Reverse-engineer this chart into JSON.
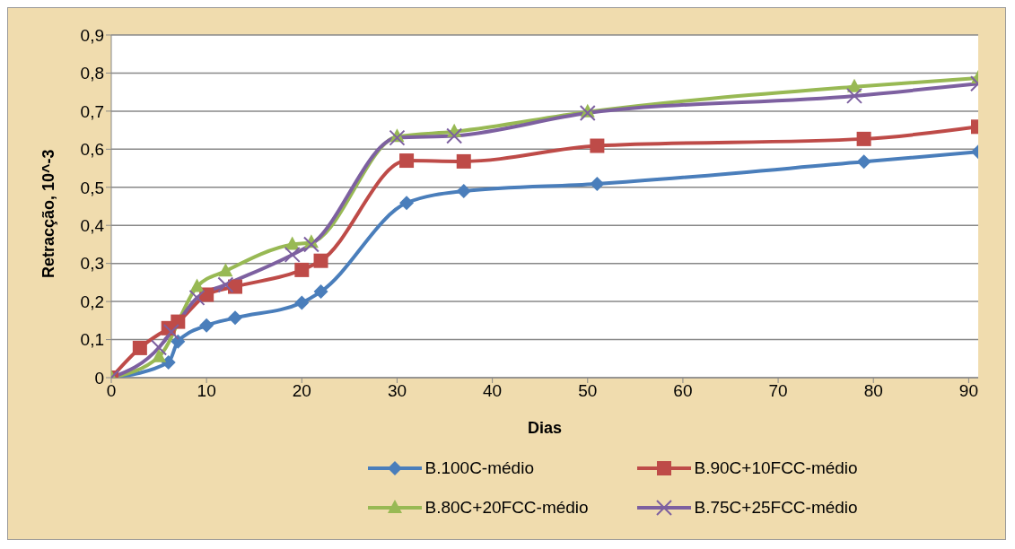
{
  "chart_data": {
    "type": "line",
    "xlabel": "Dias",
    "ylabel": "Retracção, 10^-3",
    "xlim": [
      0,
      91
    ],
    "xticks": [
      0,
      10,
      20,
      30,
      40,
      50,
      60,
      70,
      80,
      90
    ],
    "ylim": [
      0,
      0.9
    ],
    "yticks": [
      0,
      {
        "value": 0.1,
        "label": "0,1"
      },
      {
        "value": 0.2,
        "label": "0,2"
      },
      {
        "value": 0.3,
        "label": "0,3"
      },
      {
        "value": 0.4,
        "label": "0,4"
      },
      {
        "value": 0.5,
        "label": "0,5"
      },
      {
        "value": 0.6,
        "label": "0,6"
      },
      {
        "value": 0.7,
        "label": "0,7"
      },
      {
        "value": 0.8,
        "label": "0,8"
      },
      {
        "value": 0.9,
        "label": "0,9"
      }
    ],
    "grid": "y",
    "legend": "bottom",
    "series": [
      {
        "name": "B.100C-médio",
        "color": "#4a7ebb",
        "marker": "diamond",
        "x": [
          0,
          6,
          7,
          10,
          13,
          20,
          22,
          31,
          37,
          51,
          79,
          91
        ],
        "values": [
          0,
          0.04,
          0.095,
          0.137,
          0.157,
          0.197,
          0.226,
          0.459,
          0.49,
          0.509,
          0.567,
          0.593
        ]
      },
      {
        "name": "B.90C+10FCC-médio",
        "color": "#be4b48",
        "marker": "square",
        "x": [
          0,
          3,
          6,
          7,
          10,
          13,
          20,
          22,
          31,
          37,
          51,
          79,
          91
        ],
        "values": [
          0,
          0.078,
          0.13,
          0.147,
          0.218,
          0.239,
          0.283,
          0.307,
          0.57,
          0.568,
          0.609,
          0.627,
          0.659
        ]
      },
      {
        "name": "B.80C+20FCC-médio",
        "color": "#98b954",
        "marker": "triangle",
        "x": [
          0,
          5,
          9,
          12,
          19,
          21,
          30,
          36,
          50,
          78,
          91
        ],
        "values": [
          0,
          0.055,
          0.239,
          0.28,
          0.35,
          0.355,
          0.633,
          0.646,
          0.698,
          0.764,
          0.787
        ]
      },
      {
        "name": "B.75C+25FCC-médio",
        "color": "#7d60a0",
        "marker": "cross",
        "x": [
          0,
          5,
          6.3,
          9,
          12,
          19,
          21,
          30,
          36,
          50,
          78,
          91
        ],
        "values": [
          0,
          0.079,
          0.12,
          0.21,
          0.244,
          0.323,
          0.35,
          0.63,
          0.635,
          0.695,
          0.74,
          0.772
        ]
      }
    ]
  }
}
